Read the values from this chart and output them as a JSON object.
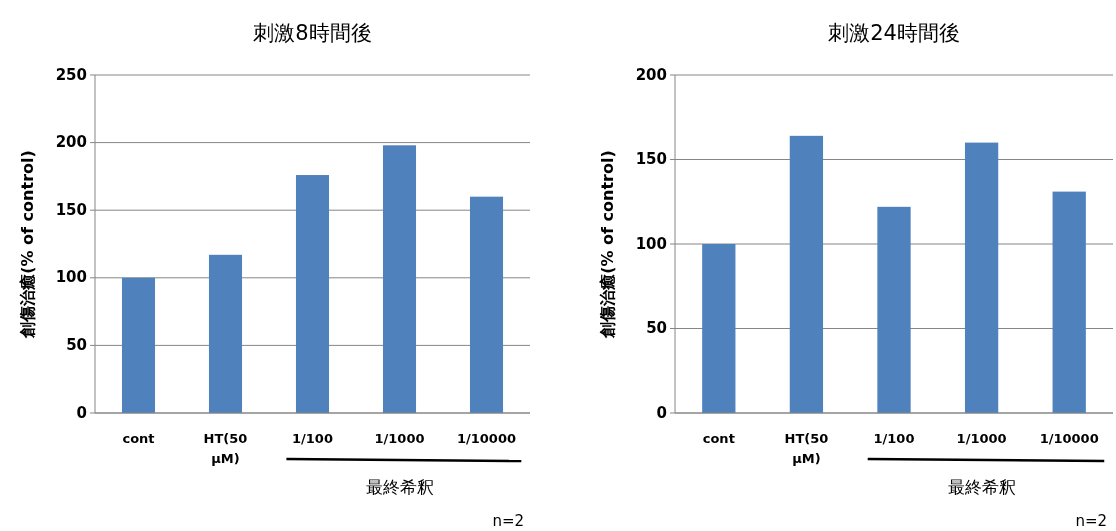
{
  "chart_data": [
    {
      "type": "bar",
      "title": "刺激8時間後",
      "ylabel": "創傷治癒(% of control)",
      "xlabel": "最終希釈",
      "categories": [
        "cont",
        "HT(50 μM)",
        "1/100",
        "1/1000",
        "1/10000"
      ],
      "values": [
        100,
        117,
        176,
        198,
        160
      ],
      "color": "#4f81bd",
      "ylim": [
        0,
        250
      ],
      "yticks": [
        0,
        50,
        100,
        150,
        200,
        250
      ],
      "grid": "y",
      "annotations": [
        "n=2"
      ]
    },
    {
      "type": "bar",
      "title": "刺激24時間後",
      "ylabel": "創傷治癒(% of control)",
      "xlabel": "最終希釈",
      "categories": [
        "cont",
        "HT(50 μM)",
        "1/100",
        "1/1000",
        "1/10000"
      ],
      "values": [
        100,
        164,
        122,
        160,
        131
      ],
      "color": "#4f81bd",
      "ylim": [
        0,
        200
      ],
      "yticks": [
        0,
        50,
        100,
        150,
        200
      ],
      "grid": "y",
      "annotations": [
        "n=2"
      ]
    }
  ]
}
